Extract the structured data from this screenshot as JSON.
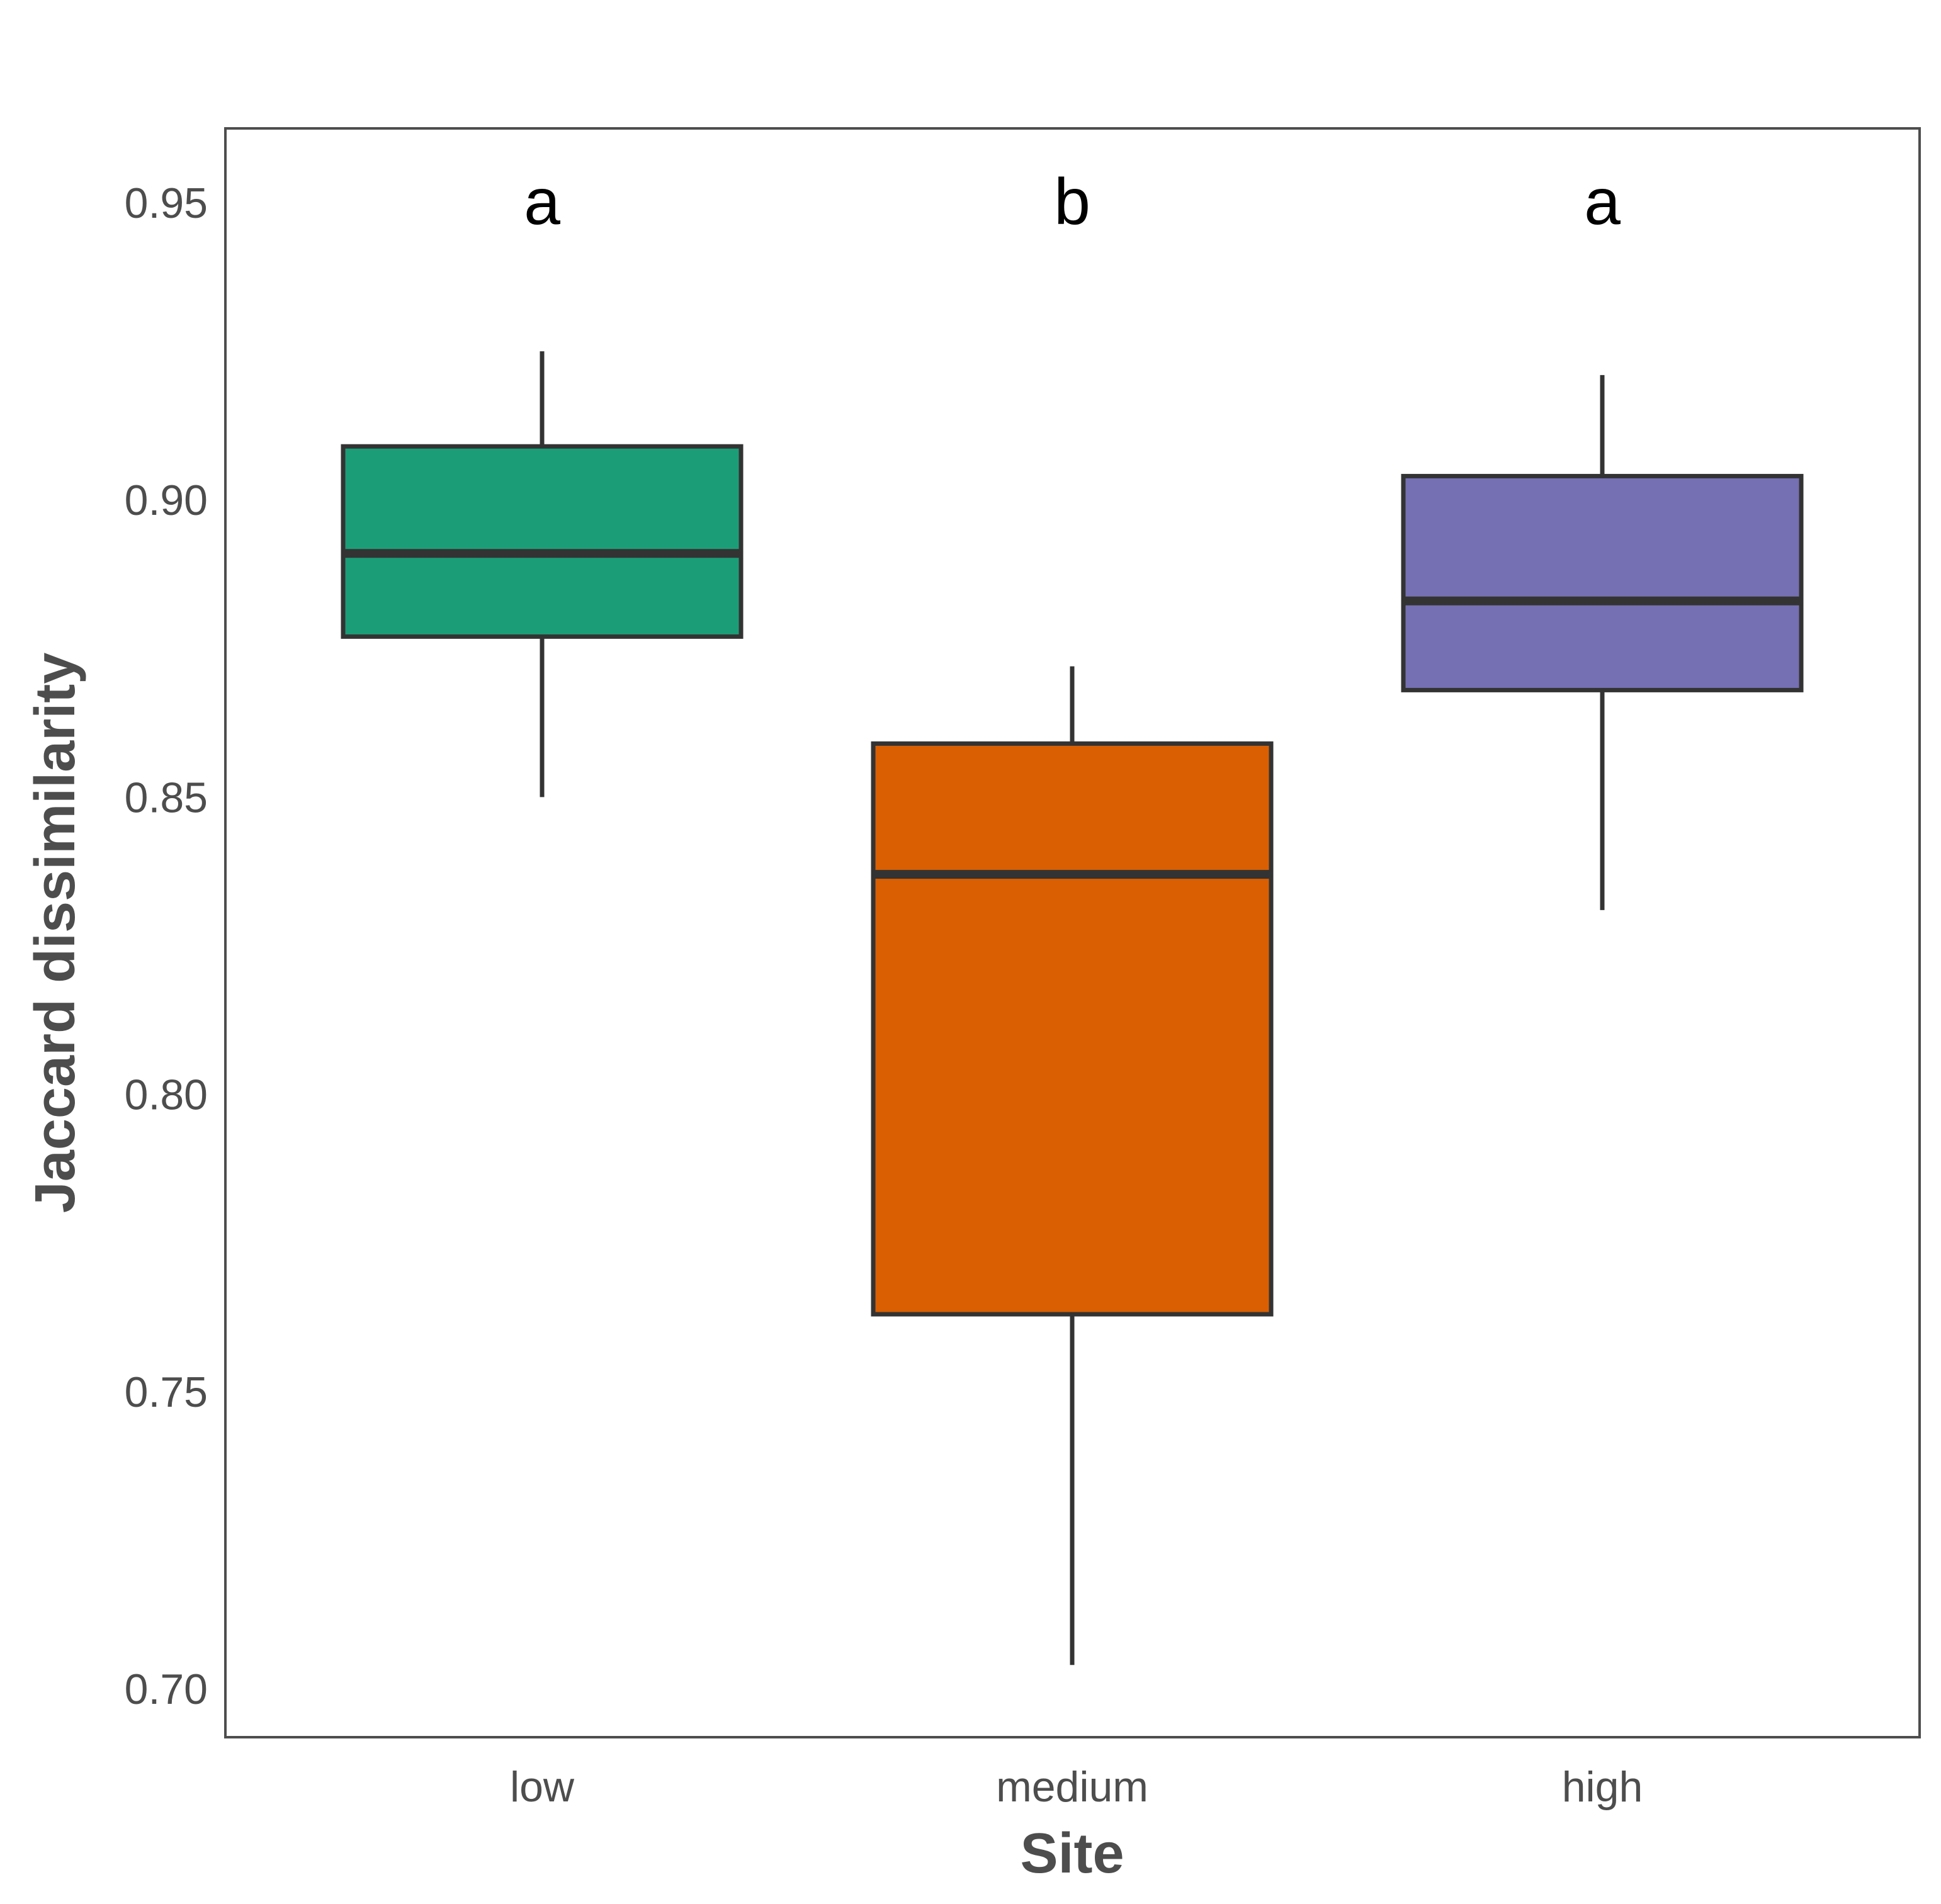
{
  "chart_data": {
    "type": "box",
    "title": "",
    "xlabel": "Site",
    "ylabel": "Jaccard dissimilarity",
    "ylim": [
      0.692,
      0.962
    ],
    "yticks": [
      "0.70",
      "0.75",
      "0.80",
      "0.85",
      "0.90",
      "0.95"
    ],
    "yticks_values": [
      0.7,
      0.75,
      0.8,
      0.85,
      0.9,
      0.95
    ],
    "grid": false,
    "categories": [
      "low",
      "medium",
      "high"
    ],
    "boxes": [
      {
        "name": "low",
        "whisker_low": 0.85,
        "q1": 0.877,
        "median": 0.891,
        "q3": 0.909,
        "whisker_high": 0.925,
        "color": "#1b9e77",
        "letter": "a"
      },
      {
        "name": "medium",
        "whisker_low": 0.704,
        "q1": 0.763,
        "median": 0.837,
        "q3": 0.859,
        "whisker_high": 0.872,
        "color": "#d95f02",
        "letter": "b"
      },
      {
        "name": "high",
        "whisker_low": 0.831,
        "q1": 0.868,
        "median": 0.883,
        "q3": 0.904,
        "whisker_high": 0.921,
        "color": "#7570b3",
        "letter": "a"
      }
    ],
    "letter_y": 0.95
  }
}
